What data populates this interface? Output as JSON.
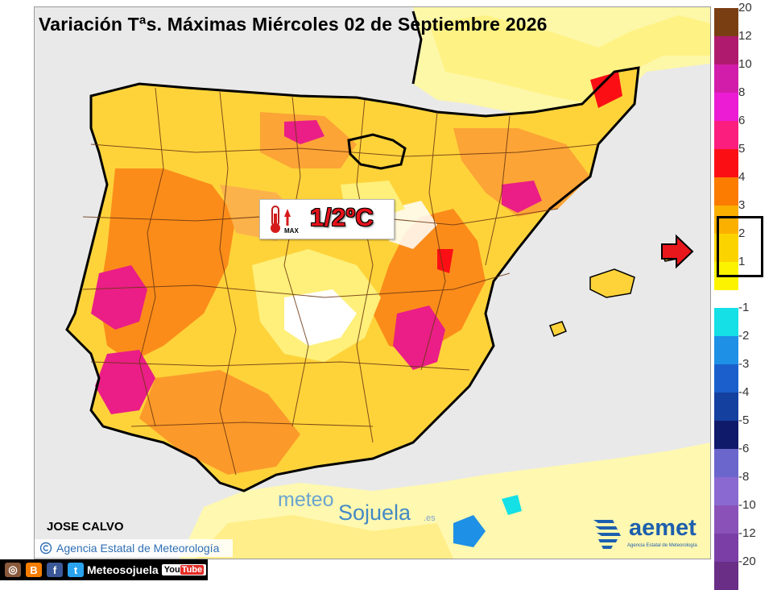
{
  "title": "Variación Tªs. Máximas Miércoles 02 de Septiembre 2026",
  "badge": {
    "icon": "thermometer-max-up-icon",
    "icon_label": "MAX",
    "value": "1/2ºC"
  },
  "watermark": {
    "meteo": "meteo",
    "sojuela": "Sojuela",
    "tld": ".es"
  },
  "author": "JOSE CALVO",
  "agency": {
    "copyright_icon": "copyright-icon",
    "name": "Agencia Estatal de Meteorología"
  },
  "aemet_logo": {
    "name": "aemet",
    "subtitle": "Agencia Estatal de Meteorología"
  },
  "legend": {
    "positive": [
      {
        "label": "20",
        "color": "#7a3e13"
      },
      {
        "label": "12",
        "color": "#b01a6e"
      },
      {
        "label": "10",
        "color": "#d21daa"
      },
      {
        "label": "8",
        "color": "#ec1cd4"
      },
      {
        "label": "6",
        "color": "#fb1e7e"
      },
      {
        "label": "5",
        "color": "#fb0f14"
      },
      {
        "label": "4",
        "color": "#fb7c00"
      },
      {
        "label": "3",
        "color": "#fbb000"
      },
      {
        "label": "2",
        "color": "#fbd400"
      },
      {
        "label": "1",
        "color": "#fbf300"
      }
    ],
    "negative": [
      {
        "label": "-1",
        "color": "#14e0e6"
      },
      {
        "label": "-2",
        "color": "#1e90e6"
      },
      {
        "label": "-3",
        "color": "#1a5fcc"
      },
      {
        "label": "-4",
        "color": "#1440a0"
      },
      {
        "label": "-5",
        "color": "#101a6a"
      },
      {
        "label": "-6",
        "color": "#6b66cc"
      },
      {
        "label": "-8",
        "color": "#8a6ad0"
      },
      {
        "label": "-10",
        "color": "#8a52b8"
      },
      {
        "label": "-12",
        "color": "#7a3ea6"
      },
      {
        "label": "-20",
        "color": "#6a2e86"
      }
    ],
    "highlighted_range": "1/2ºC"
  },
  "social": {
    "icons": [
      "instagram-icon",
      "blogger-icon",
      "facebook-icon",
      "twitter-icon"
    ],
    "handle": "Meteosojuela",
    "youtube_label": "You",
    "youtube_tube": "Tube"
  }
}
